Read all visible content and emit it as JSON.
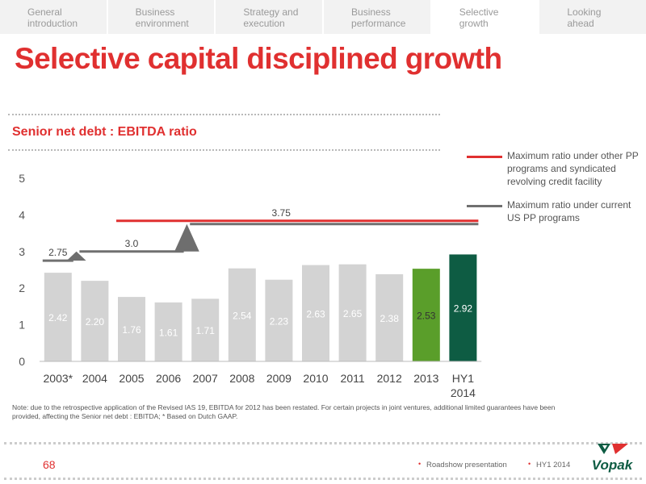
{
  "nav": {
    "tabs": [
      {
        "label": "General\nintroduction",
        "active": false
      },
      {
        "label": "Business\nenvironment",
        "active": false
      },
      {
        "label": "Strategy and\nexecution",
        "active": false
      },
      {
        "label": "Business\nperformance",
        "active": false
      },
      {
        "label": "Selective\ngrowth",
        "active": true
      },
      {
        "label": "Looking\nahead",
        "active": false
      }
    ]
  },
  "page_title": "Selective capital disciplined growth",
  "chart_data": {
    "type": "bar",
    "title": "Senior net debt : EBITDA ratio",
    "categories": [
      "2003*",
      "2004",
      "2005",
      "2006",
      "2007",
      "2008",
      "2009",
      "2010",
      "2011",
      "2012",
      "2013",
      "HY1 2014"
    ],
    "values": [
      2.42,
      2.2,
      1.76,
      1.61,
      1.71,
      2.54,
      2.23,
      2.63,
      2.65,
      2.38,
      2.53,
      2.92
    ],
    "value_labels": [
      "2.42",
      "2.20",
      "1.76",
      "1.61",
      "1.71",
      "2.54",
      "2.23",
      "2.63",
      "2.65",
      "2.38",
      "2.53",
      "2.92"
    ],
    "bar_colors": [
      "#d3d3d3",
      "#d3d3d3",
      "#d3d3d3",
      "#d3d3d3",
      "#d3d3d3",
      "#d3d3d3",
      "#d3d3d3",
      "#d3d3d3",
      "#d3d3d3",
      "#d3d3d3",
      "#5a9e2a",
      "#0e5c43"
    ],
    "label_colors": [
      "#ffffff",
      "#ffffff",
      "#ffffff",
      "#ffffff",
      "#ffffff",
      "#ffffff",
      "#ffffff",
      "#ffffff",
      "#ffffff",
      "#ffffff",
      "#333333",
      "#ffffff"
    ],
    "ylim": [
      0,
      5
    ],
    "yticks": [
      0,
      1,
      2,
      3,
      4,
      5
    ],
    "xlabel": "",
    "ylabel": "",
    "grid": false,
    "threshold_segments": [
      {
        "kind": "us_pp",
        "value": 2.75,
        "label": "2.75",
        "from_index": 0,
        "to_index": 0
      },
      {
        "kind": "us_pp",
        "value": 3.0,
        "label": "3.0",
        "from_index": 1,
        "to_index": 3
      },
      {
        "kind": "us_pp",
        "value": 3.75,
        "label": "",
        "from_index": 4,
        "to_index": 11
      },
      {
        "kind": "other_pp",
        "value": 3.75,
        "label": "3.75",
        "from_index": 2,
        "to_index": 11
      }
    ],
    "step_markers": [
      {
        "between": [
          0,
          1
        ],
        "at_value": 2.75,
        "to_value": 3.0
      },
      {
        "between": [
          3,
          4
        ],
        "at_value": 3.0,
        "to_value": 3.75
      }
    ],
    "legend": {
      "placement": "right",
      "items": [
        {
          "kind": "other_pp",
          "color": "#e03030",
          "label": "Maximum ratio under other PP programs and syndicated revolving credit facility"
        },
        {
          "kind": "us_pp",
          "color": "#707070",
          "label": "Maximum ratio under current US PP programs"
        }
      ]
    }
  },
  "note": "Note: due to the retrospective application of the Revised IAS 19, EBITDA for 2012 has been restated. For certain projects in joint ventures, additional limited guarantees have been provided, affecting the  Senior net debt : EBITDA; *   Based on Dutch GAAP.",
  "footer": {
    "page_number": "68",
    "presentation": "Roadshow presentation",
    "period": "HY1 2014",
    "logo_text": "Vopak"
  },
  "colors": {
    "accent_red": "#e03030",
    "us_pp_gray": "#707070",
    "bar_gray": "#d3d3d3",
    "bar_green": "#5a9e2a",
    "bar_dark_green": "#0e5c43",
    "marker_gray": "#6e6e6e"
  }
}
